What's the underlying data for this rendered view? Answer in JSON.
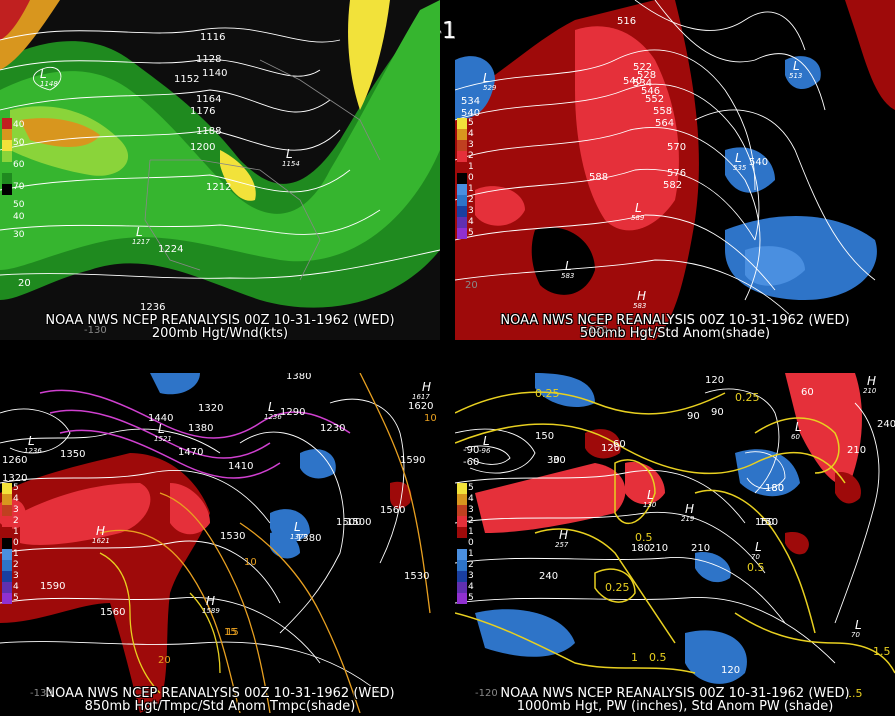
{
  "title": "00Z 10-31-1962 (WED)",
  "colors": {
    "bg": "#000000",
    "land": "#1a1a1a",
    "contour": "#ffffff",
    "border": "#888888",
    "green_dark": "#1f8a1f",
    "green_mid": "#36b52f",
    "green_light": "#8ad43a",
    "yellow": "#f2e23a",
    "orange": "#d8961e",
    "red_dark": "#9e0a0a",
    "red": "#e5303a",
    "blue": "#2e74c8",
    "blue_light": "#4a8fe0",
    "magenta": "#d040d0",
    "gold": "#e8d020"
  },
  "panels": [
    {
      "caption1": "NOAA NWS NCEP REANALYSIS 00Z 10-31-1962 (WED)",
      "caption2": "200mb Hgt/Wnd(kts)",
      "colorbar": [
        "40",
        "50",
        "60",
        "70",
        "50",
        "40",
        "30"
      ],
      "contour_labels": [
        "1116",
        "1128",
        "1140",
        "1152",
        "1164",
        "1176",
        "1188",
        "1200",
        "1212",
        "1224",
        "1236",
        "20"
      ],
      "lows": [
        "L",
        "L",
        "L"
      ],
      "low_values": [
        "1148",
        "1154",
        "1217"
      ]
    },
    {
      "caption1": "NOAA NWS NCEP REANALYSIS 00Z 10-31-1962 (WED)",
      "caption2": "500mb Hgt/Std Anom(shade)",
      "colorbar": [
        "5",
        "4",
        "3",
        "2",
        "1",
        "0",
        "1",
        "2",
        "3",
        "4",
        "5"
      ],
      "contour_labels": [
        "516",
        "522",
        "528",
        "534",
        "540",
        "546",
        "552",
        "558",
        "564",
        "570",
        "576",
        "582",
        "588",
        "534",
        "540",
        "540"
      ],
      "lows": [
        "L",
        "L",
        "L",
        "L",
        "L"
      ],
      "low_values": [
        "529",
        "535",
        "589",
        "583",
        "513"
      ],
      "highs": [
        "H"
      ],
      "high_values": [
        "583"
      ]
    },
    {
      "caption1": "NOAA NWS NCEP REANALYSIS 00Z 10-31-1962 (WED)",
      "caption2": "850mb Hgt/Tmpc/Std Anom Tmpc(shade)",
      "colorbar": [
        "5",
        "4",
        "3",
        "2",
        "1",
        "0",
        "1",
        "2",
        "3",
        "4",
        "5"
      ],
      "contour_labels": [
        "1380",
        "1320",
        "1350",
        "1380",
        "1410",
        "1440",
        "1470",
        "1500",
        "1530",
        "1560",
        "1590",
        "1620",
        "1260",
        "1320",
        "1290",
        "1230",
        "1500",
        "1530",
        "1590",
        "1560",
        "1380",
        "10",
        "15",
        "20",
        "10",
        "15"
      ],
      "lows": [
        "L",
        "L",
        "L",
        "L"
      ],
      "low_values": [
        "1236",
        "1521",
        "1236",
        "1379"
      ],
      "highs": [
        "H",
        "H",
        "H"
      ],
      "high_values": [
        "1621",
        "1589",
        "1617"
      ]
    },
    {
      "caption1": "NOAA NWS NCEP REANALYSIS 00Z 10-31-1962 (WED)",
      "caption2": "1000mb Hgt, PW (inches), Std Anom PW (shade)",
      "colorbar": [
        "5",
        "4",
        "3",
        "2",
        "1",
        "0",
        "1",
        "2",
        "3",
        "4",
        "5"
      ],
      "contour_labels": [
        "120",
        "150",
        "180",
        "210",
        "240",
        "90",
        "60",
        "30",
        "0.25",
        "0.5",
        "1",
        "1.5",
        "0.25",
        "0.5",
        "0.25",
        "0.5",
        "240",
        "210",
        "180",
        "150",
        "120",
        "90",
        "60",
        "30",
        "-60",
        "-90",
        "150",
        "210",
        "180",
        "120",
        "1.5"
      ],
      "lows": [
        "L",
        "L",
        "L",
        "L",
        "L"
      ],
      "low_values": [
        "130",
        "-96",
        "60",
        "70",
        "70"
      ],
      "highs": [
        "H",
        "H",
        "H"
      ],
      "high_values": [
        "257",
        "219",
        "210"
      ]
    }
  ],
  "axis_labels": [
    "-130",
    "-120",
    "20",
    "-130",
    "-120"
  ]
}
